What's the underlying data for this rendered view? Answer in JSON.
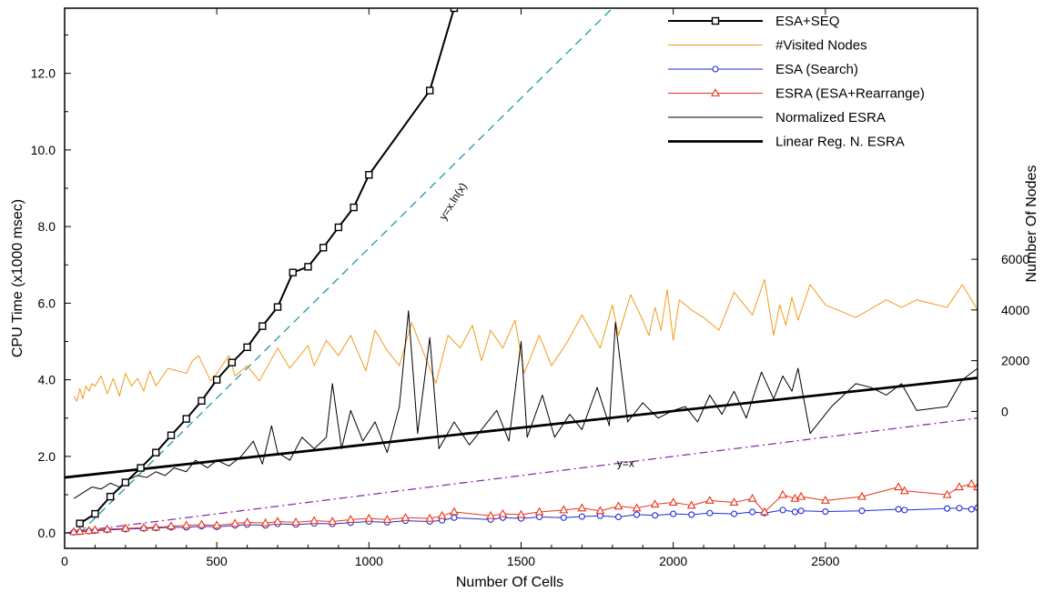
{
  "chart_data": {
    "type": "line",
    "xlabel": "Number Of Cells",
    "ylabel": "CPU Time (x1000 msec)",
    "y2label": "Number Of Nodes",
    "xlim": [
      0,
      3000
    ],
    "ylim": [
      -0.4,
      13.7
    ],
    "y2lim": [
      -5400,
      15900
    ],
    "x_ticks": [
      0,
      500,
      1000,
      1500,
      2000,
      2500
    ],
    "x_tick_labels": [
      "0",
      "500",
      "1000",
      "1500",
      "2000",
      "2500"
    ],
    "y_ticks": [
      0,
      2,
      4,
      6,
      8,
      10,
      12
    ],
    "y_tick_labels": [
      "0.0",
      "2.0",
      "4.0",
      "6.0",
      "8.0",
      "10.0",
      "12.0"
    ],
    "y2_ticks": [
      0,
      2000,
      4000,
      6000
    ],
    "y2_tick_labels": [
      "0",
      "2000",
      "4000",
      "6000"
    ],
    "legend_position": "top-right",
    "grid": false,
    "series": [
      {
        "name": "ESA+SEQ",
        "axis": "left",
        "color": "#000000",
        "marker": "square",
        "style": "solid-bold",
        "x": [
          50,
          100,
          150,
          200,
          250,
          300,
          350,
          400,
          450,
          500,
          550,
          600,
          650,
          700,
          750,
          800,
          850,
          900,
          950,
          1000,
          1200,
          1280
        ],
        "y": [
          0.25,
          0.5,
          0.95,
          1.32,
          1.7,
          2.1,
          2.55,
          2.98,
          3.45,
          4.0,
          4.45,
          4.85,
          5.4,
          5.9,
          6.8,
          6.95,
          7.45,
          7.98,
          8.5,
          9.35,
          11.55,
          13.7
        ]
      },
      {
        "name": "#Visited Nodes",
        "axis": "right",
        "color": "#f29b1d",
        "marker": "none",
        "style": "thin",
        "x": [
          30,
          40,
          50,
          60,
          70,
          80,
          90,
          100,
          120,
          140,
          160,
          180,
          200,
          220,
          240,
          260,
          280,
          300,
          340,
          400,
          420,
          440,
          480,
          500,
          540,
          560,
          600,
          640,
          700,
          740,
          800,
          820,
          860,
          900,
          940,
          990,
          1020,
          1060,
          1100,
          1140,
          1180,
          1220,
          1260,
          1300,
          1340,
          1370,
          1400,
          1440,
          1480,
          1510,
          1560,
          1600,
          1650,
          1700,
          1760,
          1800,
          1820,
          1860,
          1900,
          1920,
          1940,
          1960,
          1980,
          2000,
          2020,
          2060,
          2100,
          2150,
          2200,
          2260,
          2300,
          2330,
          2350,
          2370,
          2390,
          2410,
          2450,
          2500,
          2600,
          2700,
          2750,
          2800,
          2900,
          2950,
          3000
        ],
        "y": [
          600,
          400,
          900,
          500,
          1000,
          800,
          1100,
          1000,
          1400,
          700,
          1300,
          600,
          1500,
          1000,
          1300,
          800,
          1600,
          1000,
          1700,
          1500,
          2000,
          2200,
          1200,
          1500,
          2200,
          1400,
          1800,
          1200,
          2500,
          1700,
          2600,
          1800,
          2800,
          2200,
          3000,
          1600,
          3200,
          2400,
          1800,
          3500,
          2300,
          1100,
          3000,
          2500,
          3400,
          2000,
          3200,
          2500,
          3600,
          1500,
          3000,
          1800,
          2700,
          3800,
          2500,
          4200,
          3000,
          4600,
          3600,
          3000,
          4100,
          3200,
          4800,
          2800,
          4400,
          4000,
          3700,
          3200,
          4700,
          3800,
          5200,
          3000,
          4200,
          3400,
          4500,
          3600,
          5000,
          4200,
          3700,
          4400,
          4100,
          4400,
          4100,
          5000,
          4000
        ]
      },
      {
        "name": "ESA (Search)",
        "axis": "left",
        "color": "#1e2bd6",
        "marker": "circle",
        "style": "thin",
        "x": [
          30,
          50,
          80,
          100,
          140,
          200,
          260,
          300,
          350,
          400,
          450,
          500,
          560,
          600,
          660,
          700,
          760,
          820,
          880,
          940,
          1000,
          1060,
          1120,
          1200,
          1240,
          1280,
          1400,
          1440,
          1500,
          1560,
          1640,
          1700,
          1760,
          1820,
          1880,
          1940,
          2000,
          2060,
          2120,
          2200,
          2260,
          2300,
          2360,
          2400,
          2420,
          2500,
          2620,
          2740,
          2760,
          2900,
          2940,
          2980,
          3000
        ],
        "y": [
          0.02,
          0.03,
          0.05,
          0.06,
          0.08,
          0.1,
          0.12,
          0.13,
          0.15,
          0.15,
          0.18,
          0.16,
          0.2,
          0.22,
          0.2,
          0.24,
          0.22,
          0.25,
          0.24,
          0.27,
          0.3,
          0.28,
          0.32,
          0.3,
          0.33,
          0.4,
          0.35,
          0.4,
          0.38,
          0.42,
          0.4,
          0.43,
          0.45,
          0.42,
          0.48,
          0.46,
          0.5,
          0.48,
          0.52,
          0.5,
          0.55,
          0.52,
          0.6,
          0.55,
          0.58,
          0.56,
          0.58,
          0.62,
          0.6,
          0.64,
          0.65,
          0.62,
          0.66
        ]
      },
      {
        "name": "ESRA (ESA+Rearrange)",
        "axis": "left",
        "color": "#e8351b",
        "marker": "triangle",
        "style": "thin",
        "x": [
          30,
          50,
          80,
          100,
          140,
          200,
          260,
          300,
          350,
          400,
          450,
          500,
          560,
          600,
          660,
          700,
          760,
          820,
          880,
          940,
          1000,
          1060,
          1120,
          1200,
          1240,
          1280,
          1400,
          1440,
          1500,
          1560,
          1640,
          1700,
          1760,
          1820,
          1880,
          1940,
          2000,
          2060,
          2120,
          2200,
          2260,
          2300,
          2360,
          2400,
          2420,
          2500,
          2620,
          2740,
          2760,
          2900,
          2940,
          2980,
          3000
        ],
        "y": [
          0.03,
          0.04,
          0.06,
          0.08,
          0.1,
          0.12,
          0.14,
          0.15,
          0.18,
          0.2,
          0.22,
          0.2,
          0.25,
          0.28,
          0.26,
          0.3,
          0.28,
          0.32,
          0.3,
          0.35,
          0.38,
          0.35,
          0.4,
          0.38,
          0.45,
          0.55,
          0.45,
          0.5,
          0.48,
          0.55,
          0.6,
          0.65,
          0.58,
          0.7,
          0.65,
          0.75,
          0.8,
          0.72,
          0.85,
          0.8,
          0.9,
          0.55,
          1.0,
          0.9,
          0.95,
          0.85,
          0.95,
          1.2,
          1.1,
          1.0,
          1.2,
          1.28,
          1.2
        ]
      },
      {
        "name": "Normalized ESRA",
        "axis": "left",
        "color": "#000000",
        "marker": "none",
        "style": "thin",
        "x": [
          30,
          50,
          70,
          90,
          120,
          150,
          180,
          210,
          240,
          270,
          300,
          330,
          360,
          400,
          430,
          470,
          500,
          540,
          580,
          620,
          650,
          680,
          700,
          740,
          780,
          820,
          860,
          880,
          910,
          940,
          980,
          1020,
          1060,
          1100,
          1130,
          1160,
          1200,
          1230,
          1280,
          1330,
          1380,
          1420,
          1460,
          1500,
          1520,
          1570,
          1610,
          1660,
          1700,
          1750,
          1790,
          1810,
          1850,
          1900,
          1950,
          2000,
          2040,
          2080,
          2120,
          2160,
          2200,
          2240,
          2290,
          2330,
          2360,
          2390,
          2410,
          2450,
          2520,
          2600,
          2650,
          2700,
          2750,
          2800,
          2900,
          2950,
          3000
        ],
        "y": [
          0.9,
          1.0,
          1.1,
          1.2,
          1.15,
          1.3,
          1.2,
          1.4,
          1.5,
          1.45,
          1.6,
          1.5,
          1.7,
          1.6,
          1.9,
          1.7,
          1.9,
          1.75,
          2.0,
          2.4,
          1.8,
          2.8,
          2.1,
          1.9,
          2.5,
          2.2,
          2.5,
          3.9,
          2.2,
          3.2,
          2.4,
          2.9,
          2.1,
          3.3,
          5.8,
          2.6,
          5.1,
          2.2,
          2.9,
          2.3,
          2.8,
          3.2,
          2.4,
          5.0,
          2.5,
          3.6,
          2.5,
          3.1,
          2.7,
          3.8,
          2.8,
          5.5,
          2.9,
          3.4,
          3.0,
          3.2,
          3.3,
          2.9,
          3.6,
          3.1,
          3.7,
          3.0,
          4.2,
          3.5,
          4.1,
          3.7,
          4.3,
          2.6,
          3.3,
          3.9,
          3.8,
          3.6,
          3.9,
          3.2,
          3.3,
          4.0,
          4.3
        ]
      },
      {
        "name": "Linear Reg. N. ESRA",
        "axis": "left",
        "color": "#000000",
        "marker": "none",
        "style": "bold",
        "x": [
          0,
          3000
        ],
        "y": [
          1.45,
          4.05
        ]
      }
    ],
    "reference_lines": [
      {
        "label": "y=x.ln(x)",
        "color": "#1a9aa8",
        "style": "dashed",
        "x": [
          50,
          1800
        ],
        "y": [
          0.0,
          13.7
        ]
      },
      {
        "label": "y=x",
        "color": "#8a2aa8",
        "style": "dashdot",
        "x": [
          0,
          3000
        ],
        "y": [
          0.0,
          3.0
        ]
      }
    ]
  }
}
